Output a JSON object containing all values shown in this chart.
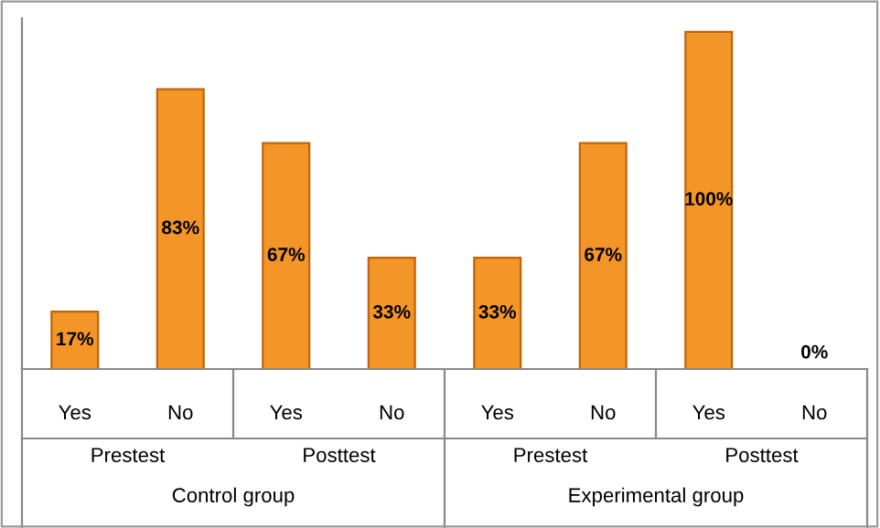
{
  "chart_data": {
    "type": "bar",
    "categories": [
      "Yes",
      "No",
      "Yes",
      "No",
      "Yes",
      "No",
      "Yes",
      "No"
    ],
    "values": [
      17,
      83,
      67,
      33,
      33,
      67,
      100,
      0
    ],
    "value_labels": [
      "17%",
      "83%",
      "67%",
      "33%",
      "33%",
      "67%",
      "100%",
      "0%"
    ],
    "color": "#f39527",
    "annotations": [
      "Prestest",
      "Posttest",
      "Prestest",
      "Posttest",
      "Control group",
      "Experimental group"
    ],
    "grid": false,
    "legend": false
  }
}
